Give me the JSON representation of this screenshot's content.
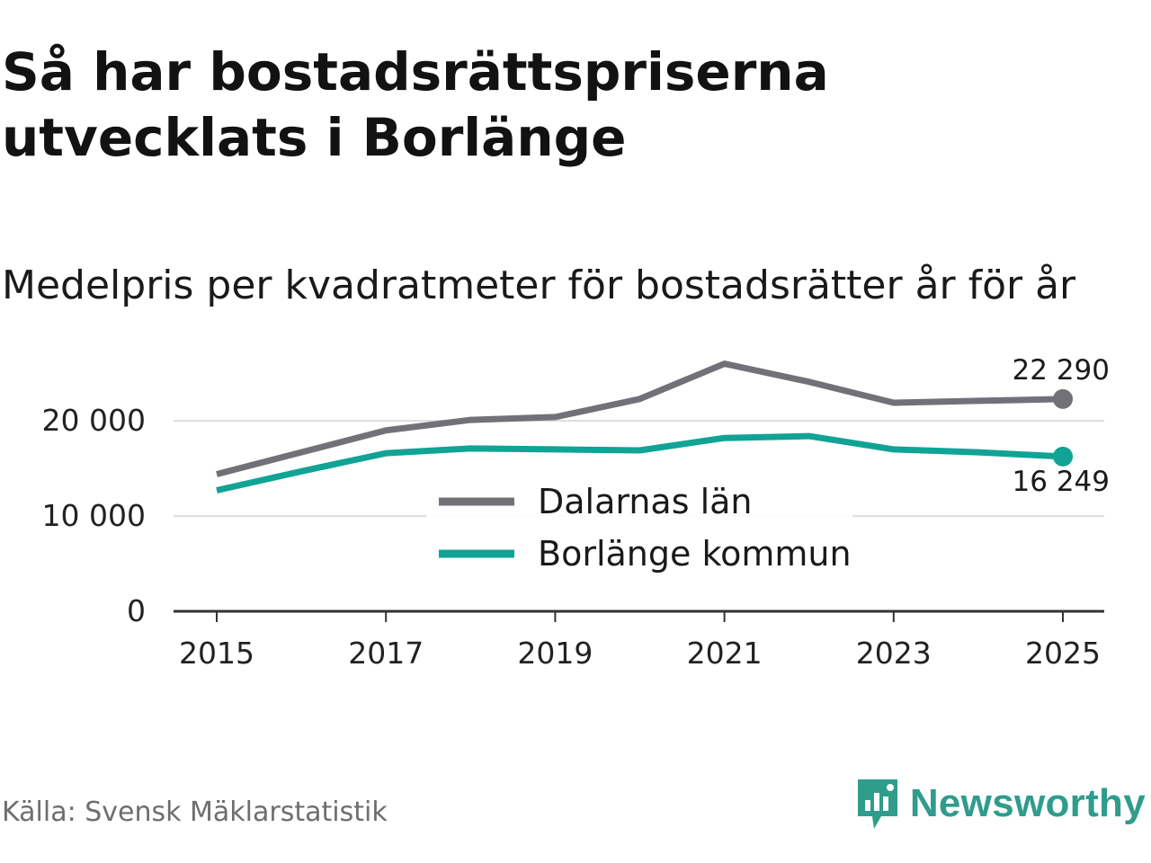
{
  "title": "Så har bostadsrättspriserna utvecklats i Borlänge",
  "subtitle": "Medelpris per kvadratmeter för bostadsrätter år för år",
  "source": "Källa: Svensk Mäklarstatistik",
  "brand": {
    "name": "Newsworthy",
    "color": "#2f9c8c",
    "icon": "newsworthy-logo-icon"
  },
  "chart_data": {
    "type": "line",
    "title": "Medelpris per kvadratmeter för bostadsrätter år för år",
    "xlabel": "",
    "ylabel": "",
    "x": [
      2015,
      2016,
      2017,
      2018,
      2019,
      2020,
      2021,
      2022,
      2023,
      2024,
      2025
    ],
    "x_ticks": [
      "2015",
      "2017",
      "2019",
      "2021",
      "2023",
      "2025"
    ],
    "y_ticks": [
      {
        "value": 0,
        "label": "0"
      },
      {
        "value": 10000,
        "label": "10 000"
      },
      {
        "value": 20000,
        "label": "20 000"
      }
    ],
    "xlim": [
      2015,
      2025
    ],
    "ylim": [
      0,
      27000
    ],
    "grid": true,
    "legend_position": "center",
    "series": [
      {
        "name": "Dalarnas län",
        "color": "#727178",
        "values": [
          14400,
          16700,
          19000,
          20100,
          20400,
          22300,
          26000,
          24100,
          21900,
          22100,
          22290
        ],
        "end_label": "22 290"
      },
      {
        "name": "Borlänge kommun",
        "color": "#11a395",
        "values": [
          12700,
          14700,
          16600,
          17100,
          17000,
          16900,
          18200,
          18400,
          17000,
          16700,
          16249
        ],
        "end_label": "16 249"
      }
    ]
  }
}
